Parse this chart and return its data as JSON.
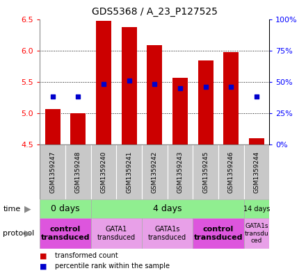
{
  "title": "GDS5368 / A_23_P127525",
  "samples": [
    "GSM1359247",
    "GSM1359248",
    "GSM1359240",
    "GSM1359241",
    "GSM1359242",
    "GSM1359243",
    "GSM1359245",
    "GSM1359246",
    "GSM1359244"
  ],
  "bar_bottoms": [
    4.5,
    4.5,
    4.5,
    4.5,
    4.5,
    4.5,
    4.5,
    4.5,
    4.5
  ],
  "bar_tops": [
    5.07,
    5.0,
    6.47,
    6.37,
    6.08,
    5.57,
    5.84,
    5.97,
    4.6
  ],
  "percentile_vals": [
    5.27,
    5.27,
    5.47,
    5.52,
    5.47,
    5.4,
    5.42,
    5.42,
    5.27
  ],
  "ylim": [
    4.5,
    6.5
  ],
  "yticks": [
    4.5,
    5.0,
    5.5,
    6.0,
    6.5
  ],
  "yticks_right": [
    0,
    25,
    50,
    75,
    100
  ],
  "bar_color": "#cc0000",
  "percentile_color": "#0000cc",
  "sample_bg": "#c8c8c8",
  "time_groups": [
    {
      "label": "0 days",
      "start": 0,
      "end": 2,
      "fontsize": 9
    },
    {
      "label": "4 days",
      "start": 2,
      "end": 8,
      "fontsize": 9
    },
    {
      "label": "14 days",
      "start": 8,
      "end": 9,
      "fontsize": 7
    }
  ],
  "protocol_groups": [
    {
      "label": "control\ntransduced",
      "start": 0,
      "end": 2,
      "bold": true,
      "fontsize": 8
    },
    {
      "label": "GATA1\ntransduced",
      "start": 2,
      "end": 4,
      "bold": false,
      "fontsize": 7
    },
    {
      "label": "GATA1s\ntransduced",
      "start": 4,
      "end": 6,
      "bold": false,
      "fontsize": 7
    },
    {
      "label": "control\ntransduced",
      "start": 6,
      "end": 8,
      "bold": true,
      "fontsize": 8
    },
    {
      "label": "GATA1s\ntransdu\nced",
      "start": 8,
      "end": 9,
      "bold": false,
      "fontsize": 6.5
    }
  ],
  "time_color": "#90ee90",
  "protocol_color_bold": "#dd55dd",
  "protocol_color_light": "#e8a0e8",
  "legend_bar_label": "transformed count",
  "legend_pct_label": "percentile rank within the sample",
  "time_label": "time",
  "protocol_label": "protocol"
}
